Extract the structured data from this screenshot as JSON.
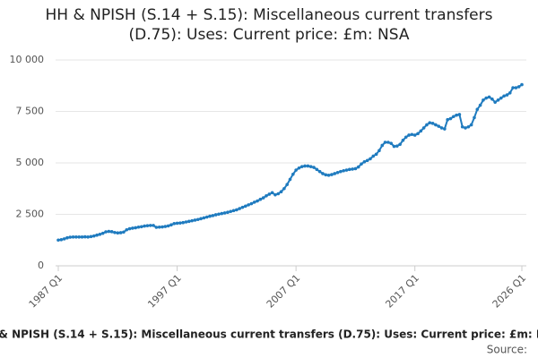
{
  "chart_data": {
    "type": "line",
    "title": "HH & NPISH (S.14 + S.15): Miscellaneous current transfers (D.75): Uses: Current price: £m: NSA",
    "source": "Source:",
    "color": "#1f7bbf",
    "grid": true,
    "ylim": [
      0,
      10000
    ],
    "yticks": [
      0,
      {
        "value": 2500,
        "label": "2 500"
      },
      {
        "value": 5000,
        "label": "5 000"
      },
      {
        "value": 7500,
        "label": "7 500"
      },
      {
        "value": 10000,
        "label": "10 000"
      }
    ],
    "categories": [
      "1987 Q1",
      null,
      null,
      null,
      null,
      null,
      null,
      null,
      null,
      null,
      null,
      null,
      null,
      null,
      null,
      null,
      null,
      null,
      null,
      null,
      null,
      null,
      null,
      null,
      null,
      null,
      null,
      null,
      null,
      null,
      null,
      null,
      null,
      null,
      null,
      null,
      null,
      null,
      null,
      null,
      "1997 Q1",
      null,
      null,
      null,
      null,
      null,
      null,
      null,
      null,
      null,
      null,
      null,
      null,
      null,
      null,
      null,
      null,
      null,
      null,
      null,
      null,
      null,
      null,
      null,
      null,
      null,
      null,
      null,
      null,
      null,
      null,
      null,
      null,
      null,
      null,
      null,
      null,
      null,
      null,
      null,
      "2007 Q1",
      null,
      null,
      null,
      null,
      null,
      null,
      null,
      null,
      null,
      null,
      null,
      null,
      null,
      null,
      null,
      null,
      null,
      null,
      null,
      null,
      null,
      null,
      null,
      null,
      null,
      null,
      null,
      null,
      null,
      null,
      null,
      null,
      null,
      null,
      null,
      null,
      null,
      null,
      null,
      "2017 Q1",
      null,
      null,
      null,
      null,
      null,
      null,
      null,
      null,
      null,
      null,
      null,
      null,
      null,
      null,
      null,
      null,
      null,
      null,
      null,
      null,
      null,
      null,
      null,
      null,
      null,
      null,
      null,
      null,
      null,
      null,
      null,
      null,
      null,
      null,
      null,
      "2026 Q1"
    ],
    "values": [
      1250,
      1270,
      1310,
      1360,
      1390,
      1400,
      1400,
      1400,
      1400,
      1410,
      1400,
      1420,
      1450,
      1490,
      1530,
      1580,
      1650,
      1670,
      1660,
      1620,
      1600,
      1610,
      1640,
      1750,
      1800,
      1830,
      1850,
      1880,
      1900,
      1930,
      1950,
      1960,
      1960,
      1870,
      1880,
      1890,
      1910,
      1940,
      1990,
      2050,
      2070,
      2080,
      2100,
      2130,
      2160,
      2190,
      2220,
      2250,
      2290,
      2330,
      2370,
      2410,
      2440,
      2480,
      2510,
      2540,
      2570,
      2600,
      2640,
      2680,
      2720,
      2780,
      2840,
      2900,
      2960,
      3020,
      3090,
      3150,
      3230,
      3300,
      3400,
      3480,
      3550,
      3450,
      3500,
      3600,
      3750,
      3950,
      4200,
      4450,
      4650,
      4750,
      4820,
      4850,
      4850,
      4820,
      4780,
      4680,
      4580,
      4480,
      4420,
      4400,
      4430,
      4480,
      4530,
      4580,
      4620,
      4650,
      4680,
      4700,
      4720,
      4800,
      4950,
      5050,
      5120,
      5200,
      5330,
      5420,
      5600,
      5850,
      6000,
      6000,
      5950,
      5800,
      5820,
      5900,
      6100,
      6250,
      6350,
      6380,
      6350,
      6420,
      6550,
      6700,
      6850,
      6950,
      6920,
      6850,
      6780,
      6700,
      6650,
      7100,
      7150,
      7250,
      7320,
      7350,
      6750,
      6700,
      6750,
      6850,
      7200,
      7600,
      7800,
      8050,
      8150,
      8200,
      8100,
      7950,
      8050,
      8150,
      8250,
      8300,
      8400,
      8650,
      8650,
      8700,
      8800
    ]
  }
}
